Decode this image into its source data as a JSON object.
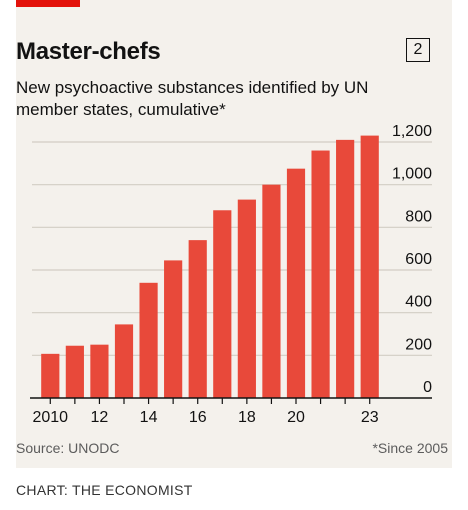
{
  "header": {
    "title": "Master-chefs",
    "chart_number": "2",
    "subtitle": "New psychoactive substances identified by UN member states, cumulative*"
  },
  "footer": {
    "source": "Source: UNODC",
    "footnote": "*Since 2005",
    "credit": "CHART: THE ECONOMIST"
  },
  "colors": {
    "bar": "#e8493a",
    "accent": "#e3120b",
    "grid": "#d2cdc4",
    "axis": "#121212"
  },
  "chart_data": {
    "type": "bar",
    "categories": [
      "2010",
      "2011",
      "2012",
      "2013",
      "2014",
      "2015",
      "2016",
      "2017",
      "2018",
      "2019",
      "2020",
      "2021",
      "2022",
      "2023"
    ],
    "values": [
      207,
      245,
      250,
      345,
      540,
      645,
      740,
      880,
      930,
      1000,
      1075,
      1160,
      1210,
      1230
    ],
    "x_tick_labels": [
      {
        "index": 0,
        "label": "2010"
      },
      {
        "index": 2,
        "label": "12"
      },
      {
        "index": 4,
        "label": "14"
      },
      {
        "index": 6,
        "label": "16"
      },
      {
        "index": 8,
        "label": "18"
      },
      {
        "index": 10,
        "label": "20"
      },
      {
        "index": 13,
        "label": "23"
      }
    ],
    "y_ticks": [
      0,
      200,
      400,
      600,
      800,
      1000,
      1200
    ],
    "y_tick_labels": [
      "0",
      "200",
      "400",
      "600",
      "800",
      "1,000",
      "1,200"
    ],
    "ylim": [
      0,
      1200
    ],
    "y_axis_side": "right",
    "grid": true,
    "legend": false
  }
}
